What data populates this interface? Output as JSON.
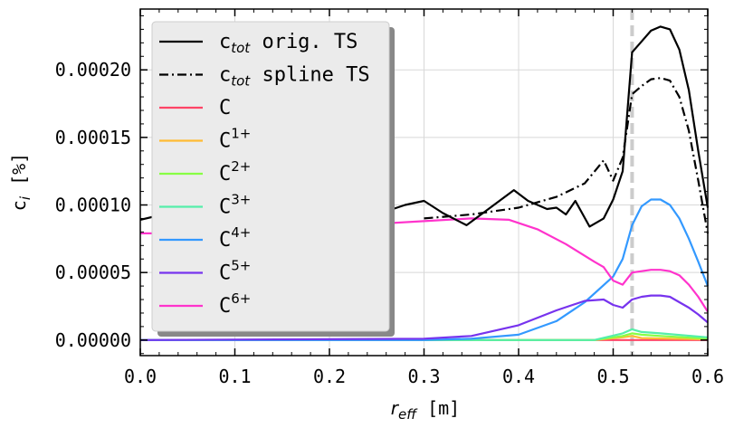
{
  "chart_data": {
    "type": "line",
    "xlabel": "r_eff [m]",
    "ylabel": "c_i [%]",
    "xlim": [
      0.0,
      0.6
    ],
    "ylim": [
      -1.15e-05,
      0.000245
    ],
    "grid": true,
    "legend_position": "top-left",
    "xticks": [
      "0.0",
      "0.1",
      "0.2",
      "0.3",
      "0.4",
      "0.5",
      "0.6"
    ],
    "xtick_values": [
      0.0,
      0.1,
      0.2,
      0.3,
      0.4,
      0.5,
      0.6
    ],
    "yticks": [
      "0.00000",
      "0.00005",
      "0.00010",
      "0.00015",
      "0.00020"
    ],
    "ytick_values": [
      0.0,
      5e-05,
      0.0001,
      0.00015,
      0.0002
    ],
    "vline": {
      "x": 0.52,
      "color": "#cccccc",
      "style": "dashed"
    },
    "series": [
      {
        "name": "c_tot orig. TS",
        "color": "#000000",
        "dash": "solid",
        "x": [
          0.0,
          0.03,
          0.06,
          0.1,
          0.15,
          0.2,
          0.25,
          0.28,
          0.3,
          0.32,
          0.345,
          0.37,
          0.395,
          0.41,
          0.43,
          0.44,
          0.45,
          0.46,
          0.475,
          0.49,
          0.5,
          0.51,
          0.52,
          0.53,
          0.54,
          0.55,
          0.56,
          0.57,
          0.58,
          0.59,
          0.6
        ],
        "y": [
          8.9e-05,
          9.4e-05,
          9.6e-05,
          9.4e-05,
          9.3e-05,
          9.1e-05,
          9.3e-05,
          0.0001,
          0.000103,
          9.4e-05,
          8.5e-05,
          9.8e-05,
          0.000111,
          0.000103,
          9.7e-05,
          9.8e-05,
          9.3e-05,
          0.000103,
          8.4e-05,
          9e-05,
          0.000104,
          0.000125,
          0.000213,
          0.000221,
          0.000229,
          0.000232,
          0.00023,
          0.000215,
          0.000185,
          0.00014,
          9.8e-05
        ]
      },
      {
        "name": "c_tot spline TS",
        "color": "#000000",
        "dash": "dashdot",
        "x": [
          0.3,
          0.35,
          0.4,
          0.44,
          0.47,
          0.49,
          0.5,
          0.51,
          0.52,
          0.53,
          0.54,
          0.55,
          0.56,
          0.57,
          0.58,
          0.59,
          0.6
        ],
        "y": [
          9e-05,
          9.3e-05,
          9.8e-05,
          0.000106,
          0.000116,
          0.000133,
          0.000118,
          0.000135,
          0.000182,
          0.000188,
          0.000193,
          0.000194,
          0.000192,
          0.00018,
          0.000155,
          0.000118,
          7.9e-05
        ]
      },
      {
        "name": "C",
        "color": "#ff4466",
        "dash": "solid",
        "x": [
          0.0,
          0.6
        ],
        "y": [
          0.0,
          0.0
        ]
      },
      {
        "name": "C1+",
        "color": "#ffbb33",
        "dash": "solid",
        "x": [
          0.0,
          0.48,
          0.51,
          0.52,
          0.53,
          0.6
        ],
        "y": [
          0.0,
          0.0,
          2e-06,
          3e-06,
          1.5e-06,
          5e-07
        ]
      },
      {
        "name": "C2+",
        "color": "#88ff44",
        "dash": "solid",
        "x": [
          0.0,
          0.48,
          0.51,
          0.52,
          0.53,
          0.55,
          0.6
        ],
        "y": [
          0.0,
          0.0,
          3e-06,
          5e-06,
          4e-06,
          3e-06,
          1e-06
        ]
      },
      {
        "name": "C3+",
        "color": "#55eeaa",
        "dash": "solid",
        "x": [
          0.0,
          0.48,
          0.51,
          0.52,
          0.53,
          0.55,
          0.6
        ],
        "y": [
          0.0,
          0.0,
          5e-06,
          8e-06,
          6e-06,
          5e-06,
          2e-06
        ]
      },
      {
        "name": "C4+",
        "color": "#3399ff",
        "dash": "solid",
        "x": [
          0.0,
          0.3,
          0.35,
          0.4,
          0.44,
          0.47,
          0.5,
          0.51,
          0.52,
          0.53,
          0.54,
          0.55,
          0.56,
          0.57,
          0.58,
          0.59,
          0.6
        ],
        "y": [
          0.0,
          0.0,
          1e-06,
          4e-06,
          1.4e-05,
          2.8e-05,
          4.7e-05,
          6e-05,
          8.5e-05,
          9.9e-05,
          0.000104,
          0.000104,
          0.0001,
          9e-05,
          7.5e-05,
          5.8e-05,
          4e-05
        ]
      },
      {
        "name": "C5+",
        "color": "#7733ee",
        "dash": "solid",
        "x": [
          0.0,
          0.3,
          0.35,
          0.4,
          0.44,
          0.47,
          0.49,
          0.5,
          0.51,
          0.52,
          0.53,
          0.54,
          0.55,
          0.56,
          0.57,
          0.58,
          0.59,
          0.6
        ],
        "y": [
          0.0,
          1e-06,
          3e-06,
          1.1e-05,
          2.2e-05,
          2.9e-05,
          3e-05,
          2.6e-05,
          2.4e-05,
          3e-05,
          3.2e-05,
          3.3e-05,
          3.3e-05,
          3.2e-05,
          2.8e-05,
          2.4e-05,
          1.9e-05,
          1.3e-05
        ]
      },
      {
        "name": "C6+",
        "color": "#ff33cc",
        "dash": "solid",
        "x": [
          0.0,
          0.05,
          0.1,
          0.2,
          0.3,
          0.35,
          0.39,
          0.42,
          0.45,
          0.48,
          0.49,
          0.5,
          0.51,
          0.52,
          0.53,
          0.54,
          0.55,
          0.56,
          0.57,
          0.58,
          0.59,
          0.6
        ],
        "y": [
          7.9e-05,
          7.9e-05,
          8e-05,
          8.4e-05,
          8.8e-05,
          9e-05,
          8.9e-05,
          8.2e-05,
          7.1e-05,
          5.8e-05,
          5.4e-05,
          4.4e-05,
          4.1e-05,
          5e-05,
          5.1e-05,
          5.2e-05,
          5.2e-05,
          5.1e-05,
          4.8e-05,
          4.1e-05,
          3.2e-05,
          2.1e-05
        ]
      }
    ],
    "legend": [
      {
        "pre": "c",
        "sub": "tot",
        "post": " orig. TS",
        "sup": "",
        "color": "#000000",
        "dash": "solid"
      },
      {
        "pre": "c",
        "sub": "tot",
        "post": " spline TS",
        "sup": "",
        "color": "#000000",
        "dash": "dashdot"
      },
      {
        "pre": "C",
        "sub": "",
        "post": "",
        "sup": "",
        "color": "#ff4466",
        "dash": "solid"
      },
      {
        "pre": "C",
        "sub": "",
        "post": "",
        "sup": "1+",
        "color": "#ffbb33",
        "dash": "solid"
      },
      {
        "pre": "C",
        "sub": "",
        "post": "",
        "sup": "2+",
        "color": "#88ff44",
        "dash": "solid"
      },
      {
        "pre": "C",
        "sub": "",
        "post": "",
        "sup": "3+",
        "color": "#55eeaa",
        "dash": "solid"
      },
      {
        "pre": "C",
        "sub": "",
        "post": "",
        "sup": "4+",
        "color": "#3399ff",
        "dash": "solid"
      },
      {
        "pre": "C",
        "sub": "",
        "post": "",
        "sup": "5+",
        "color": "#7733ee",
        "dash": "solid"
      },
      {
        "pre": "C",
        "sub": "",
        "post": "",
        "sup": "6+",
        "color": "#ff33cc",
        "dash": "solid"
      }
    ]
  }
}
